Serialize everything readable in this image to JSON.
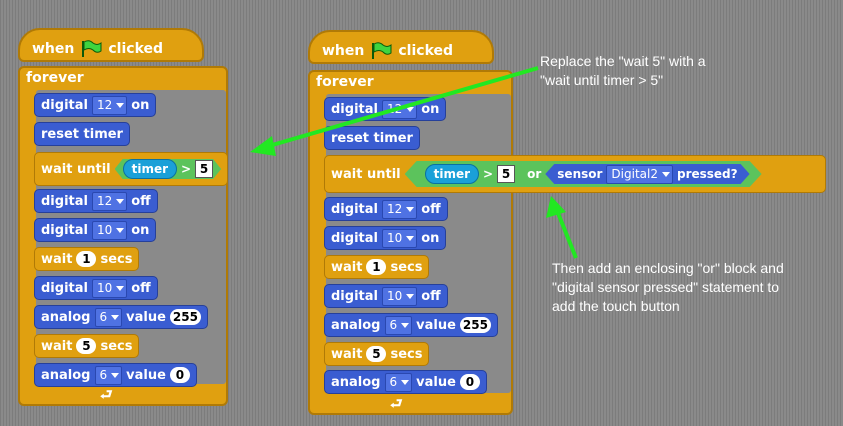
{
  "colors": {
    "control": "#e0a010",
    "motion": "#3a5dd1",
    "reporter": "#1aa0d8",
    "operator": "#5cc35c",
    "arrow": "#22e822",
    "background": "#8a8a8a"
  },
  "icons": {
    "flag": "green-flag-icon",
    "loop": "loop-arrow-icon",
    "dropdown": "dropdown-arrow-icon"
  },
  "left_script": {
    "hat": {
      "when": "when",
      "clicked": "clicked"
    },
    "forever": "forever",
    "blocks": {
      "b1": {
        "label": "digital",
        "port": "12",
        "state": "on"
      },
      "b2": {
        "label": "reset timer"
      },
      "b3": {
        "label": "wait until",
        "reporter": "timer",
        "op": ">",
        "value": "5"
      },
      "b4": {
        "label": "digital",
        "port": "12",
        "state": "off"
      },
      "b5": {
        "label": "digital",
        "port": "10",
        "state": "on"
      },
      "b6": {
        "label": "wait",
        "value": "1",
        "unit": "secs"
      },
      "b7": {
        "label": "digital",
        "port": "10",
        "state": "off"
      },
      "b8": {
        "label": "analog",
        "port": "6",
        "word": "value",
        "value": "255"
      },
      "b9": {
        "label": "wait",
        "value": "5",
        "unit": "secs"
      },
      "b10": {
        "label": "analog",
        "port": "6",
        "word": "value",
        "value": "0"
      }
    }
  },
  "right_script": {
    "hat": {
      "when": "when",
      "clicked": "clicked"
    },
    "forever": "forever",
    "blocks": {
      "b1": {
        "label": "digital",
        "port": "12",
        "state": "on"
      },
      "b2": {
        "label": "reset timer"
      },
      "b3": {
        "label": "wait until",
        "reporter": "timer",
        "op": ">",
        "value": "5",
        "or": "or",
        "sensor": "sensor",
        "sensor_port": "Digital2",
        "pressed": "pressed?"
      },
      "b4": {
        "label": "digital",
        "port": "12",
        "state": "off"
      },
      "b5": {
        "label": "digital",
        "port": "10",
        "state": "on"
      },
      "b6": {
        "label": "wait",
        "value": "1",
        "unit": "secs"
      },
      "b7": {
        "label": "digital",
        "port": "10",
        "state": "off"
      },
      "b8": {
        "label": "analog",
        "port": "6",
        "word": "value",
        "value": "255"
      },
      "b9": {
        "label": "wait",
        "value": "5",
        "unit": "secs"
      },
      "b10": {
        "label": "analog",
        "port": "6",
        "word": "value",
        "value": "0"
      }
    }
  },
  "annotations": {
    "top": [
      "Replace the \"wait 5\" with a",
      "\"wait until timer > 5\""
    ],
    "bottom": [
      "Then add an enclosing \"or\" block and",
      "\"digital sensor  pressed\" statement to",
      "add the touch button"
    ]
  }
}
